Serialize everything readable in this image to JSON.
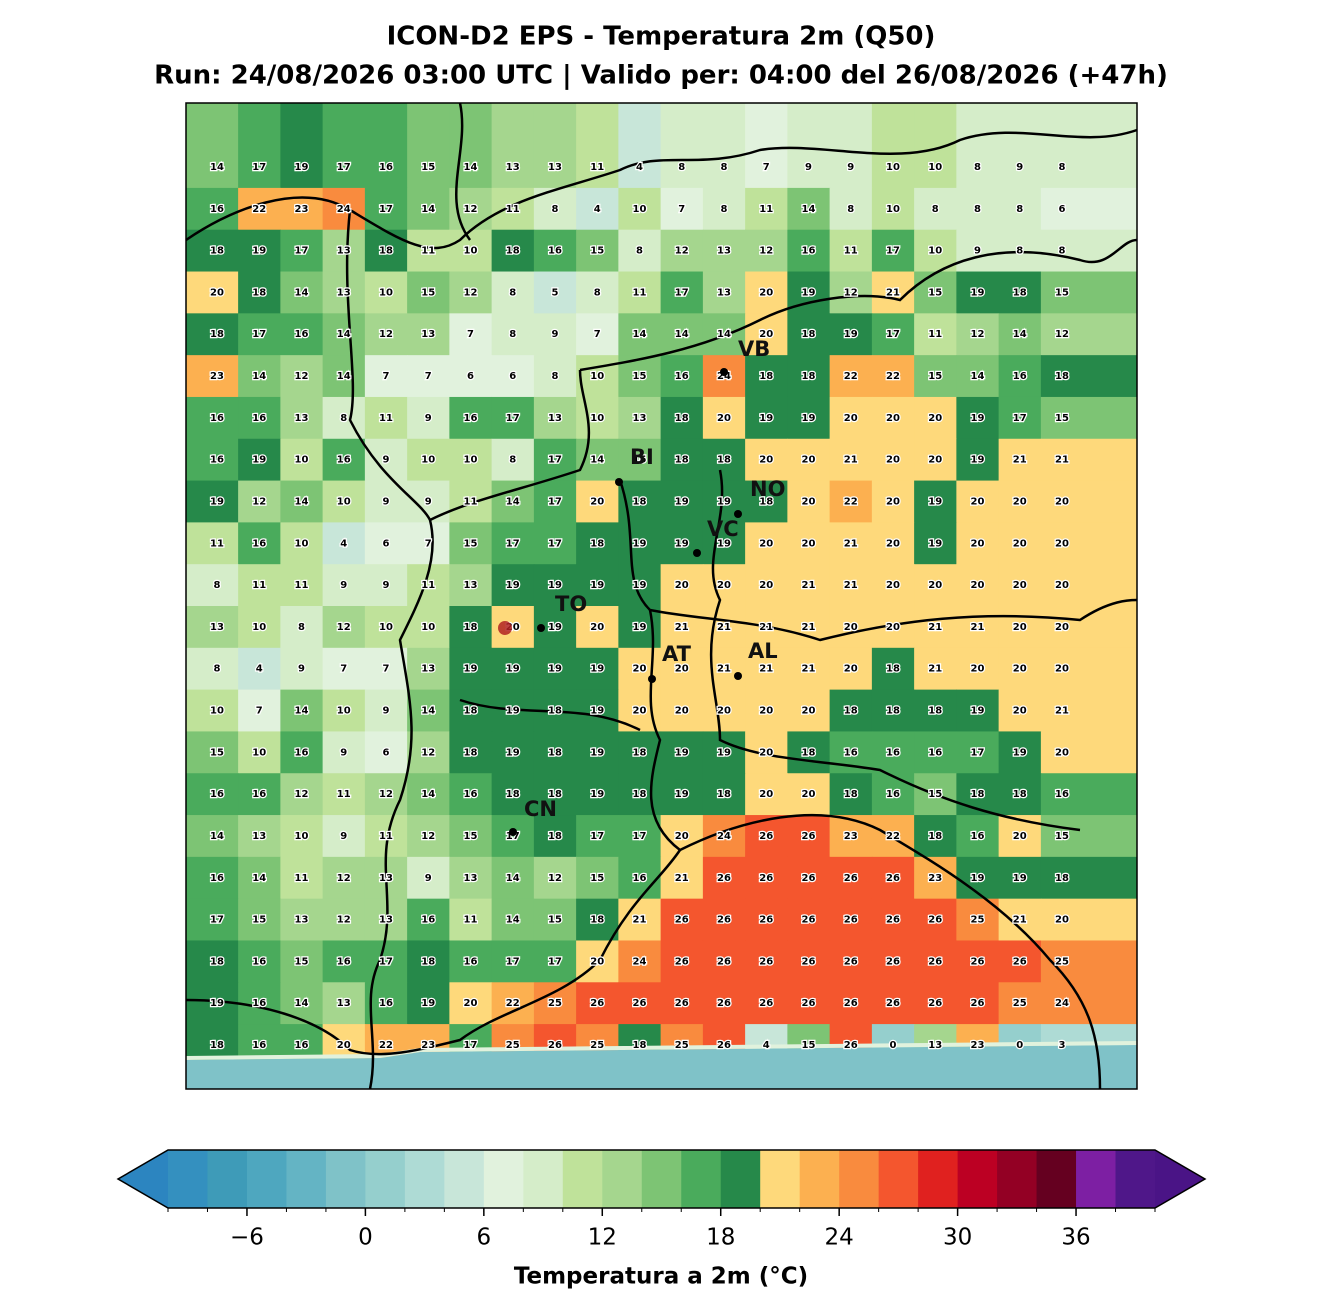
{
  "title": "ICON-D2 EPS - Temperatura 2m (Q50)",
  "subtitle": "Run: 24/08/2026 03:00 UTC | Valido per: 04:00 del 26/08/2026 (+47h)",
  "grid": [
    [
      14,
      17,
      19,
      17,
      16,
      15,
      14,
      13,
      13,
      11,
      4,
      8,
      8,
      7,
      9,
      9,
      10,
      10,
      8,
      9,
      8
    ],
    [
      16,
      22,
      23,
      24,
      17,
      14,
      12,
      11,
      8,
      4,
      10,
      7,
      8,
      11,
      14,
      8,
      10,
      8,
      8,
      8,
      6
    ],
    [
      18,
      19,
      17,
      13,
      18,
      11,
      10,
      18,
      16,
      15,
      8,
      12,
      13,
      12,
      16,
      11,
      17,
      10,
      9,
      8,
      8
    ],
    [
      20,
      18,
      14,
      13,
      10,
      15,
      12,
      8,
      5,
      8,
      11,
      17,
      13,
      20,
      19,
      12,
      21,
      15,
      19,
      18,
      15
    ],
    [
      18,
      17,
      16,
      14,
      12,
      13,
      7,
      8,
      9,
      7,
      14,
      14,
      14,
      20,
      18,
      19,
      17,
      11,
      12,
      14,
      12
    ],
    [
      23,
      14,
      12,
      14,
      7,
      7,
      6,
      6,
      8,
      10,
      15,
      16,
      24,
      18,
      18,
      22,
      22,
      15,
      14,
      16,
      18
    ],
    [
      16,
      16,
      13,
      8,
      11,
      9,
      16,
      17,
      13,
      10,
      13,
      18,
      20,
      19,
      19,
      20,
      20,
      20,
      19,
      17,
      15
    ],
    [
      16,
      19,
      10,
      16,
      9,
      10,
      10,
      8,
      17,
      14,
      15,
      18,
      18,
      20,
      20,
      21,
      20,
      20,
      19,
      21,
      21
    ],
    [
      19,
      12,
      14,
      10,
      9,
      9,
      11,
      14,
      17,
      20,
      18,
      19,
      19,
      18,
      20,
      22,
      20,
      19,
      20,
      20,
      20
    ],
    [
      11,
      16,
      10,
      4,
      6,
      7,
      15,
      17,
      17,
      18,
      19,
      19,
      19,
      20,
      20,
      21,
      20,
      19,
      20,
      20,
      20
    ],
    [
      8,
      11,
      11,
      9,
      9,
      11,
      13,
      19,
      19,
      19,
      19,
      20,
      20,
      20,
      21,
      21,
      20,
      20,
      20,
      20,
      20
    ],
    [
      13,
      10,
      8,
      12,
      10,
      10,
      18,
      20,
      19,
      20,
      19,
      21,
      21,
      21,
      21,
      20,
      20,
      21,
      21,
      20,
      20
    ],
    [
      8,
      4,
      9,
      7,
      7,
      13,
      19,
      19,
      19,
      19,
      20,
      20,
      21,
      21,
      21,
      20,
      18,
      21,
      20,
      20,
      20
    ],
    [
      10,
      7,
      14,
      10,
      9,
      14,
      18,
      19,
      18,
      19,
      20,
      20,
      20,
      20,
      20,
      18,
      18,
      18,
      19,
      20,
      21
    ],
    [
      15,
      10,
      16,
      9,
      6,
      12,
      18,
      19,
      18,
      19,
      18,
      19,
      19,
      20,
      18,
      16,
      16,
      16,
      17,
      19,
      20
    ],
    [
      16,
      16,
      12,
      11,
      12,
      14,
      16,
      18,
      18,
      19,
      18,
      19,
      18,
      20,
      20,
      18,
      16,
      15,
      18,
      18,
      16
    ],
    [
      14,
      13,
      10,
      9,
      11,
      12,
      15,
      17,
      18,
      17,
      17,
      20,
      24,
      26,
      26,
      23,
      22,
      18,
      16,
      20,
      15
    ],
    [
      16,
      14,
      11,
      12,
      13,
      9,
      13,
      14,
      12,
      15,
      16,
      21,
      26,
      26,
      26,
      26,
      26,
      23,
      19,
      19,
      18
    ],
    [
      17,
      15,
      13,
      12,
      13,
      16,
      11,
      14,
      15,
      18,
      21,
      26,
      26,
      26,
      26,
      26,
      26,
      26,
      25,
      21,
      20
    ],
    [
      18,
      16,
      15,
      16,
      17,
      18,
      16,
      17,
      17,
      20,
      24,
      26,
      26,
      26,
      26,
      26,
      26,
      26,
      26,
      26,
      25
    ],
    [
      19,
      16,
      14,
      13,
      16,
      19,
      20,
      22,
      25,
      26,
      26,
      26,
      26,
      26,
      26,
      26,
      26,
      26,
      26,
      25,
      24
    ],
    [
      18,
      16,
      16,
      20,
      22,
      23,
      17,
      25,
      26,
      25,
      18,
      25,
      26,
      4,
      15,
      26,
      0,
      13,
      23,
      0,
      3
    ]
  ],
  "cities": [
    "VB",
    "BI",
    "NO",
    "VC",
    "TO",
    "AT",
    "AL",
    "CN"
  ],
  "colorbar": {
    "label": "Temperatura a 2m (°C)",
    "levels": [
      -10,
      -8,
      -6,
      -4,
      -2,
      0,
      2,
      4,
      6,
      8,
      10,
      12,
      14,
      16,
      18,
      20,
      22,
      24,
      26,
      28,
      30,
      32,
      34,
      36,
      38,
      40
    ],
    "colors": [
      "#3490bf",
      "#3e9bb8",
      "#4ea7bf",
      "#64b4c4",
      "#7fc2c8",
      "#95cfcd",
      "#aedbd5",
      "#c8e6d9",
      "#e1f2dd",
      "#d5edc9",
      "#bfe29a",
      "#a5d68e",
      "#7dc474",
      "#4aab5c",
      "#26894a",
      "#fed97b",
      "#fcb050",
      "#f98b3e",
      "#f4562e",
      "#e0211f",
      "#bc0023",
      "#930024",
      "#650020",
      "#7d1fa3",
      "#4f1789"
    ],
    "extend_colors": [
      "#2c85c0",
      "#4a1486"
    ],
    "ticks": [
      {
        "value": -6,
        "label": "−6"
      },
      0,
      6,
      12,
      18,
      24,
      30,
      36
    ]
  }
}
